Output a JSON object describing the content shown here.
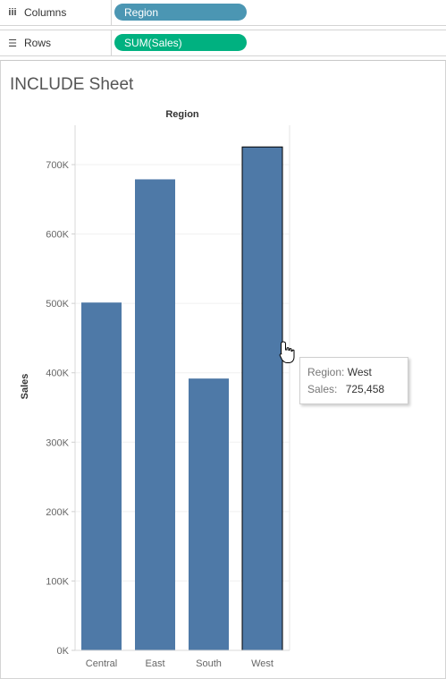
{
  "shelves": {
    "columns": {
      "label": "Columns",
      "pill": "Region"
    },
    "rows": {
      "label": "Rows",
      "pill": "SUM(Sales)"
    }
  },
  "sheet": {
    "title": "INCLUDE Sheet"
  },
  "chart_data": {
    "type": "bar",
    "title": "",
    "xlabel": "Region",
    "ylabel": "Sales",
    "categories": [
      "Central",
      "East",
      "South",
      "West"
    ],
    "values": [
      501240,
      678781,
      391722,
      725458
    ],
    "ylim": [
      0,
      700000
    ],
    "yticks": [
      0,
      100000,
      200000,
      300000,
      400000,
      500000,
      600000,
      700000
    ],
    "ytick_labels": [
      "0K",
      "100K",
      "200K",
      "300K",
      "400K",
      "500K",
      "600K",
      "700K"
    ],
    "bar_color": "#4e79a7",
    "grid": true,
    "highlighted": "West"
  },
  "tooltip": {
    "region_key": "Region:",
    "region_val": "West",
    "sales_key": "Sales:",
    "sales_val": "725,458"
  }
}
